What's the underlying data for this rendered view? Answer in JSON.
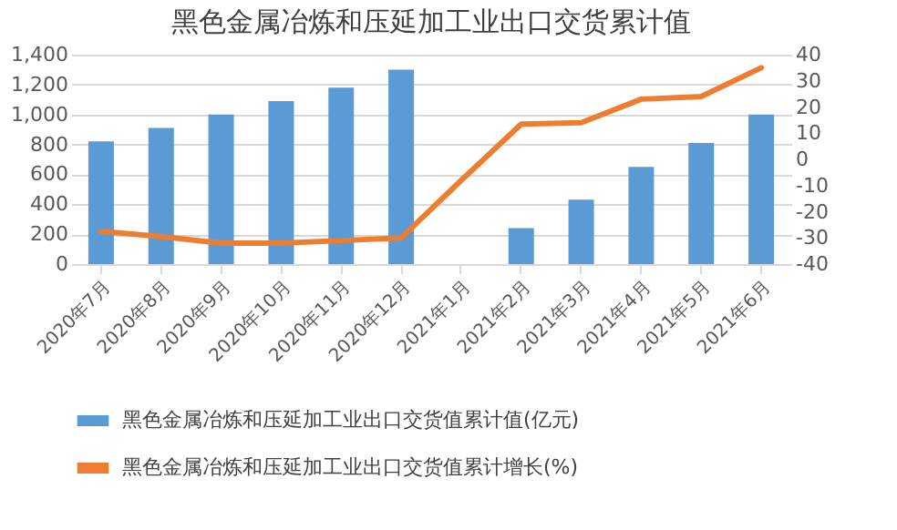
{
  "chart_data": {
    "type": "bar",
    "title": "黑色金属冶炼和压延加工业出口交货累计值",
    "categories": [
      "2020年7月",
      "2020年8月",
      "2020年9月",
      "2020年10月",
      "2020年11月",
      "2020年12月",
      "2021年1月",
      "2021年2月",
      "2021年3月",
      "2021年4月",
      "2021年5月",
      "2021年6月"
    ],
    "series": [
      {
        "name": "黑色金属冶炼和压延加工业出口交货值累计值(亿元)",
        "color": "#5b9bd5",
        "values": [
          820,
          910,
          1000,
          1090,
          1180,
          1300,
          null,
          240,
          430,
          650,
          810,
          1000
        ]
      },
      {
        "name": "黑色金属冶炼和压延加工业出口交货值累计增长(%)",
        "type": "line",
        "axis": "y2",
        "color": "#ed7d31",
        "values": [
          -27.5,
          -29.5,
          -32,
          -32,
          -31,
          -30,
          -8,
          13.5,
          14,
          23,
          24,
          35
        ]
      }
    ],
    "ylim": [
      0,
      1400
    ],
    "yticks": [
      0,
      200,
      400,
      600,
      800,
      {
        "value": 1000,
        "label": "1,000"
      },
      {
        "value": 1200,
        "label": "1,200"
      },
      {
        "value": 1400,
        "label": "1,400"
      }
    ],
    "y2lim": [
      -40,
      40
    ],
    "y2ticks": [
      -40,
      -30,
      -20,
      -10,
      0,
      10,
      20,
      30,
      40
    ],
    "grid": "y",
    "legend": "bottom"
  }
}
